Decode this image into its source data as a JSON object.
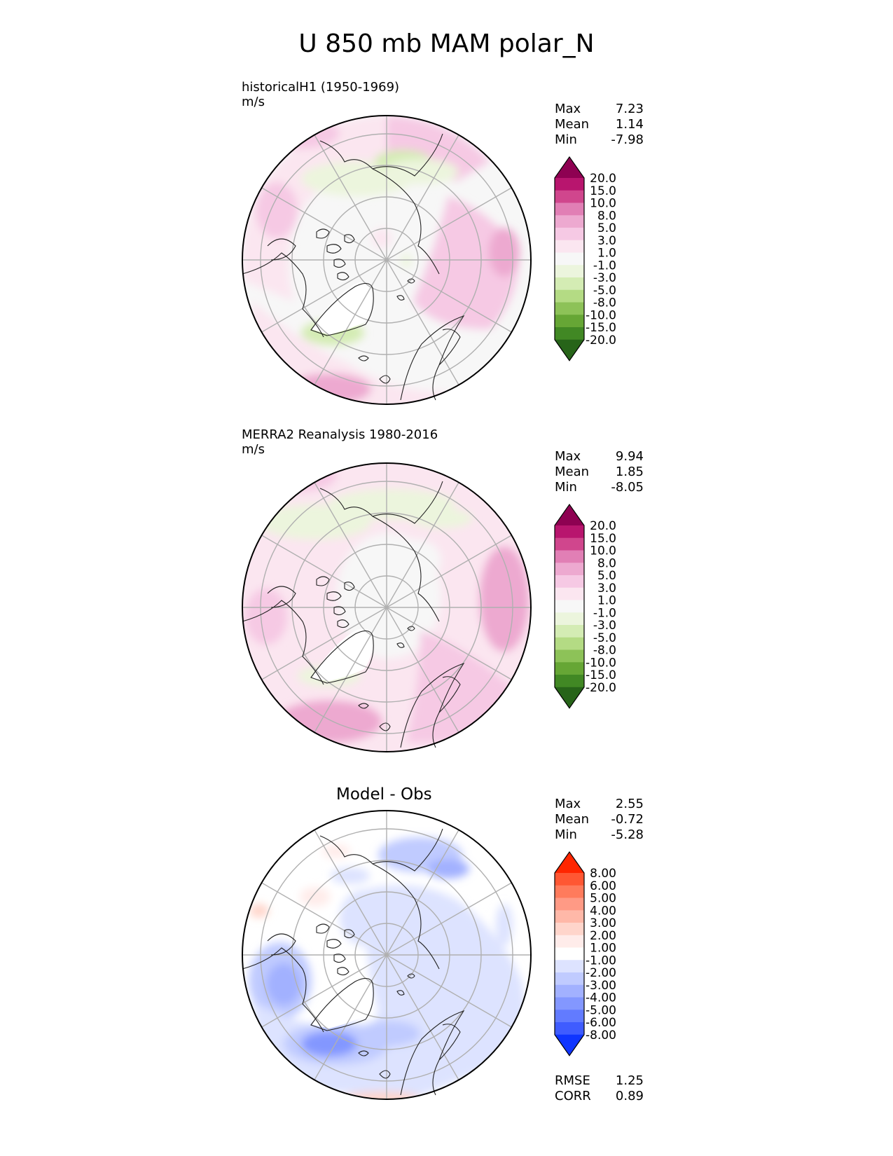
{
  "title": "U 850 mb MAM polar_N",
  "chart_data": [
    {
      "type": "heatmap",
      "projection": "north polar stereographic",
      "title": "historicalH1 (1950-1969)",
      "units": "m/s",
      "stats": [
        {
          "label": "Max",
          "value": "7.23"
        },
        {
          "label": "Mean",
          "value": "1.14"
        },
        {
          "label": "Min",
          "value": "-7.98"
        }
      ],
      "colorbar": {
        "levels": [
          "20.0",
          "15.0",
          "10.0",
          "8.0",
          "5.0",
          "3.0",
          "1.0",
          "-1.0",
          "-3.0",
          "-5.0",
          "-8.0",
          "-10.0",
          "-15.0",
          "-20.0"
        ],
        "colors": [
          "#8e0152",
          "#b8156e",
          "#d0468d",
          "#e17fb5",
          "#eda9d0",
          "#f6c9e4",
          "#fbe6f0",
          "#f7f7f7",
          "#ecf5dd",
          "#d4ecb4",
          "#b4db84",
          "#8dc258",
          "#66a635",
          "#418824",
          "#276419"
        ]
      }
    },
    {
      "type": "heatmap",
      "projection": "north polar stereographic",
      "title": "MERRA2 Reanalysis 1980-2016",
      "units": "m/s",
      "stats": [
        {
          "label": "Max",
          "value": "9.94"
        },
        {
          "label": "Mean",
          "value": "1.85"
        },
        {
          "label": "Min",
          "value": "-8.05"
        }
      ],
      "colorbar": {
        "levels": [
          "20.0",
          "15.0",
          "10.0",
          "8.0",
          "5.0",
          "3.0",
          "1.0",
          "-1.0",
          "-3.0",
          "-5.0",
          "-8.0",
          "-10.0",
          "-15.0",
          "-20.0"
        ],
        "colors": [
          "#8e0152",
          "#b8156e",
          "#d0468d",
          "#e17fb5",
          "#eda9d0",
          "#f6c9e4",
          "#fbe6f0",
          "#f7f7f7",
          "#ecf5dd",
          "#d4ecb4",
          "#b4db84",
          "#8dc258",
          "#66a635",
          "#418824",
          "#276419"
        ]
      }
    },
    {
      "type": "heatmap",
      "projection": "north polar stereographic",
      "title": "Model - Obs",
      "stats": [
        {
          "label": "Max",
          "value": "2.55"
        },
        {
          "label": "Mean",
          "value": "-0.72"
        },
        {
          "label": "Min",
          "value": "-5.28"
        }
      ],
      "extra_stats": [
        {
          "label": "RMSE",
          "value": "1.25"
        },
        {
          "label": "CORR",
          "value": "0.89"
        }
      ],
      "colorbar": {
        "levels": [
          "8.00",
          "6.00",
          "5.00",
          "4.00",
          "3.00",
          "2.00",
          "1.00",
          "-1.00",
          "-2.00",
          "-3.00",
          "-4.00",
          "-5.00",
          "-6.00",
          "-8.00"
        ],
        "colors": [
          "#ff2600",
          "#ff5733",
          "#ff7b5c",
          "#ff9a85",
          "#ffb8a8",
          "#ffd5cb",
          "#ffecea",
          "#ffffff",
          "#dde3ff",
          "#c0cbff",
          "#a2b1ff",
          "#8397ff",
          "#627bff",
          "#3f5cff",
          "#0f35ff"
        ]
      }
    }
  ]
}
